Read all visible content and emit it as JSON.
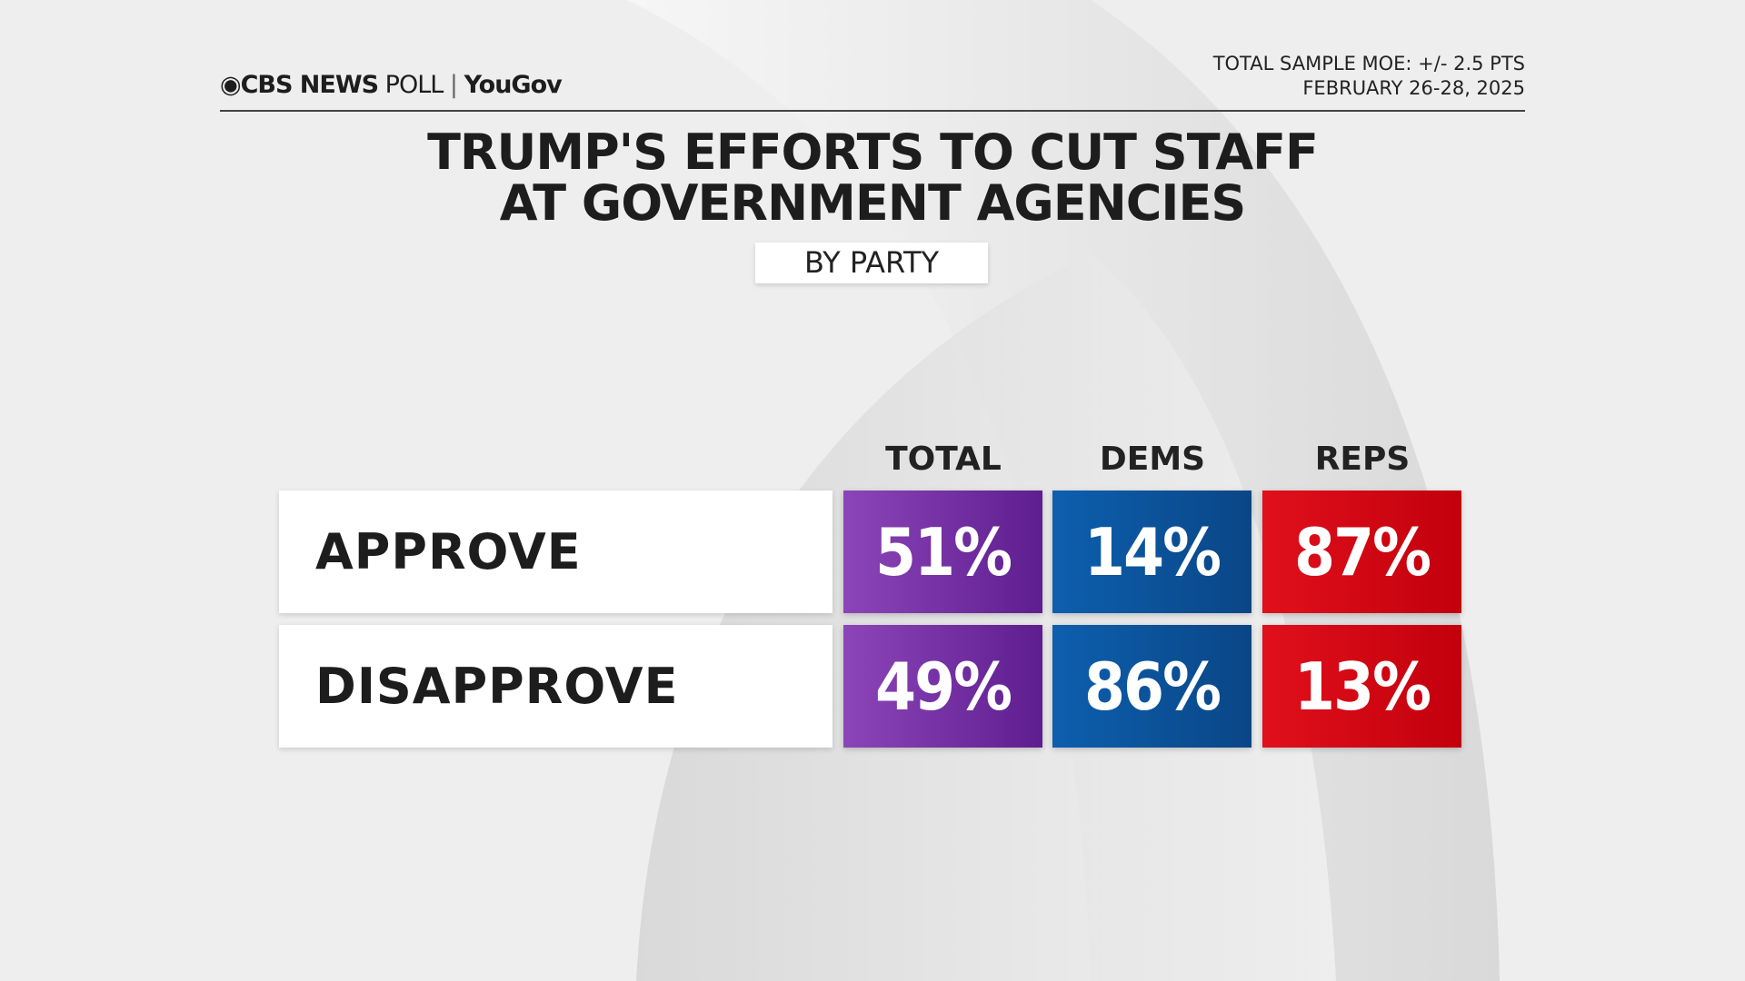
{
  "header": {
    "brand": "CBS NEWS",
    "poll": "POLL",
    "partner": "YouGov",
    "moe": "TOTAL SAMPLE MOE: +/- 2.5 PTS",
    "dates": "FEBRUARY 26-28, 2025"
  },
  "title": [
    "TRUMP'S EFFORTS TO CUT STAFF",
    "AT GOVERNMENT AGENCIES"
  ],
  "subtitle": "BY PARTY",
  "table": {
    "columns": [
      "TOTAL",
      "DEMS",
      "REPS"
    ],
    "rows": [
      [
        "APPROVE",
        "51%",
        "14%",
        "87%"
      ],
      [
        "DISAPPROVE",
        "49%",
        "86%",
        "13%"
      ]
    ]
  }
}
